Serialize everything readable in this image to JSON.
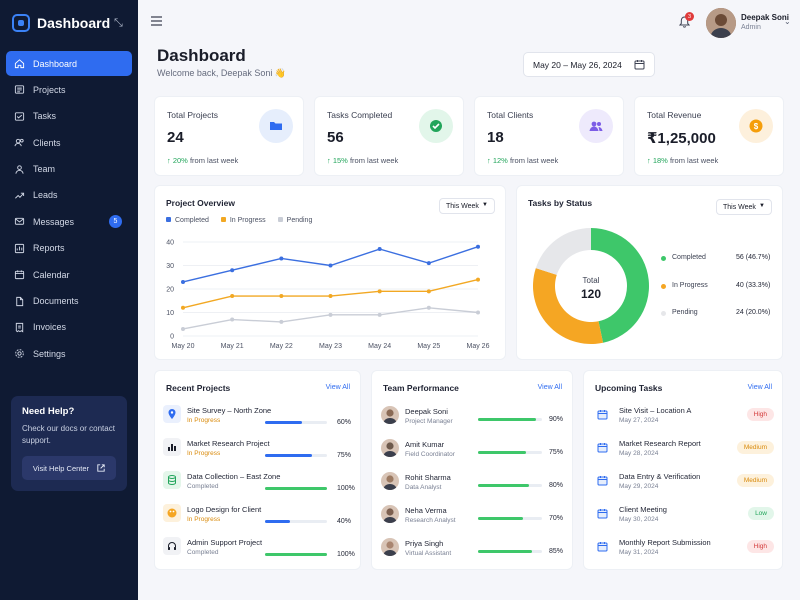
{
  "sidebar": {
    "brand": "Dashboard",
    "items": [
      {
        "label": "Dashboard",
        "icon": "home-icon",
        "active": true
      },
      {
        "label": "Projects",
        "icon": "projects-icon"
      },
      {
        "label": "Tasks",
        "icon": "tasks-icon"
      },
      {
        "label": "Clients",
        "icon": "clients-icon"
      },
      {
        "label": "Team",
        "icon": "team-icon"
      },
      {
        "label": "Leads",
        "icon": "leads-icon"
      },
      {
        "label": "Messages",
        "icon": "messages-icon",
        "badge": "5"
      },
      {
        "label": "Reports",
        "icon": "reports-icon"
      },
      {
        "label": "Calendar",
        "icon": "calendar-icon"
      },
      {
        "label": "Documents",
        "icon": "documents-icon"
      },
      {
        "label": "Invoices",
        "icon": "invoices-icon"
      },
      {
        "label": "Settings",
        "icon": "settings-icon"
      }
    ],
    "help": {
      "title": "Need Help?",
      "text": "Check our docs or contact support.",
      "button": "Visit Help Center"
    }
  },
  "topbar": {
    "notification_count": "3",
    "user_name": "Deepak Soni",
    "user_role": "Admin"
  },
  "header": {
    "title": "Dashboard",
    "welcome": "Welcome back, Deepak Soni 👋",
    "date_range": "May 20 – May 26, 2024"
  },
  "stats": [
    {
      "label": "Total Projects",
      "value": "24",
      "change": "20%",
      "suffix": "from last week",
      "icon": "folder-icon",
      "color": "#2f6cf0",
      "bg": "#e6eefc"
    },
    {
      "label": "Tasks Completed",
      "value": "56",
      "change": "15%",
      "suffix": "from last week",
      "icon": "check-circle-icon",
      "color": "#22a55b",
      "bg": "#e2f6ea"
    },
    {
      "label": "Total Clients",
      "value": "18",
      "change": "12%",
      "suffix": "from last week",
      "icon": "users-icon",
      "color": "#7c5ce6",
      "bg": "#eeeafc"
    },
    {
      "label": "Total Revenue",
      "value": "₹1,25,000",
      "change": "18%",
      "suffix": "from last week",
      "icon": "coin-icon",
      "color": "#f59e0b",
      "bg": "#fdf0dc"
    }
  ],
  "project_overview": {
    "title": "Project Overview",
    "filter": "This Week"
  },
  "tasks_status": {
    "title": "Tasks by Status",
    "filter": "This Week",
    "total_label": "Total",
    "total_value": "120"
  },
  "chart_data": [
    {
      "type": "line",
      "x": [
        "May 20",
        "May 21",
        "May 22",
        "May 23",
        "May 24",
        "May 25",
        "May 26"
      ],
      "ylim": [
        0,
        40
      ],
      "yticks": [
        0,
        10,
        20,
        30,
        40
      ],
      "grid": true,
      "legend": "top-left",
      "series": [
        {
          "name": "Completed",
          "color": "#3b6fe0",
          "values": [
            23,
            28,
            33,
            30,
            37,
            31,
            38
          ]
        },
        {
          "name": "In Progress",
          "color": "#f2a823",
          "values": [
            12,
            17,
            17,
            17,
            19,
            19,
            24
          ]
        },
        {
          "name": "Pending",
          "color": "#c9cdd6",
          "values": [
            3,
            7,
            6,
            9,
            9,
            12,
            10
          ]
        }
      ]
    },
    {
      "type": "pie",
      "donut": true,
      "legend": "right",
      "slices": [
        {
          "name": "Completed",
          "value": 56,
          "pct": "46.7%",
          "color": "#3ec76a"
        },
        {
          "name": "In Progress",
          "value": 40,
          "pct": "33.3%",
          "color": "#f5a623"
        },
        {
          "name": "Pending",
          "value": 24,
          "pct": "20.0%",
          "color": "#e6e7ea"
        }
      ]
    }
  ],
  "recent_projects": {
    "title": "Recent Projects",
    "view_all": "View All",
    "items": [
      {
        "name": "Site Survey – North Zone",
        "status": "In Progress",
        "progress": 60,
        "pct": "60%",
        "icon": "map-pin-icon",
        "color": "#2f6cf0"
      },
      {
        "name": "Market Research Project",
        "status": "In Progress",
        "progress": 75,
        "pct": "75%",
        "icon": "chart-bar-icon",
        "color": "#2f6cf0"
      },
      {
        "name": "Data Collection – East Zone",
        "status": "Completed",
        "progress": 100,
        "pct": "100%",
        "icon": "database-icon",
        "color": "#3ec76a"
      },
      {
        "name": "Logo Design for Client",
        "status": "In Progress",
        "progress": 40,
        "pct": "40%",
        "icon": "palette-icon",
        "color": "#2f6cf0"
      },
      {
        "name": "Admin Support Project",
        "status": "Completed",
        "progress": 100,
        "pct": "100%",
        "icon": "headset-icon",
        "color": "#3ec76a"
      }
    ]
  },
  "team_performance": {
    "title": "Team Performance",
    "view_all": "View All",
    "members": [
      {
        "name": "Deepak Soni",
        "role": "Project Manager",
        "progress": 90,
        "pct": "90%"
      },
      {
        "name": "Amit Kumar",
        "role": "Field Coordinator",
        "progress": 75,
        "pct": "75%"
      },
      {
        "name": "Rohit Sharma",
        "role": "Data Analyst",
        "progress": 80,
        "pct": "80%"
      },
      {
        "name": "Neha Verma",
        "role": "Research Analyst",
        "progress": 70,
        "pct": "70%"
      },
      {
        "name": "Priya Singh",
        "role": "Virtual Assistant",
        "progress": 85,
        "pct": "85%"
      }
    ]
  },
  "upcoming_tasks": {
    "title": "Upcoming Tasks",
    "view_all": "View All",
    "items": [
      {
        "name": "Site Visit – Location A",
        "date": "May 27, 2024",
        "priority": "High",
        "color": "#d33a3a",
        "bg": "#fde6e6"
      },
      {
        "name": "Market Research Report",
        "date": "May 28, 2024",
        "priority": "Medium",
        "color": "#d98a0b",
        "bg": "#fdf1dc"
      },
      {
        "name": "Data Entry & Verification",
        "date": "May 29, 2024",
        "priority": "Medium",
        "color": "#d98a0b",
        "bg": "#fdf1dc"
      },
      {
        "name": "Client Meeting",
        "date": "May 30, 2024",
        "priority": "Low",
        "color": "#22a55b",
        "bg": "#e2f6ea"
      },
      {
        "name": "Monthly Report Submission",
        "date": "May 31, 2024",
        "priority": "High",
        "color": "#d33a3a",
        "bg": "#fde6e6"
      }
    ]
  }
}
